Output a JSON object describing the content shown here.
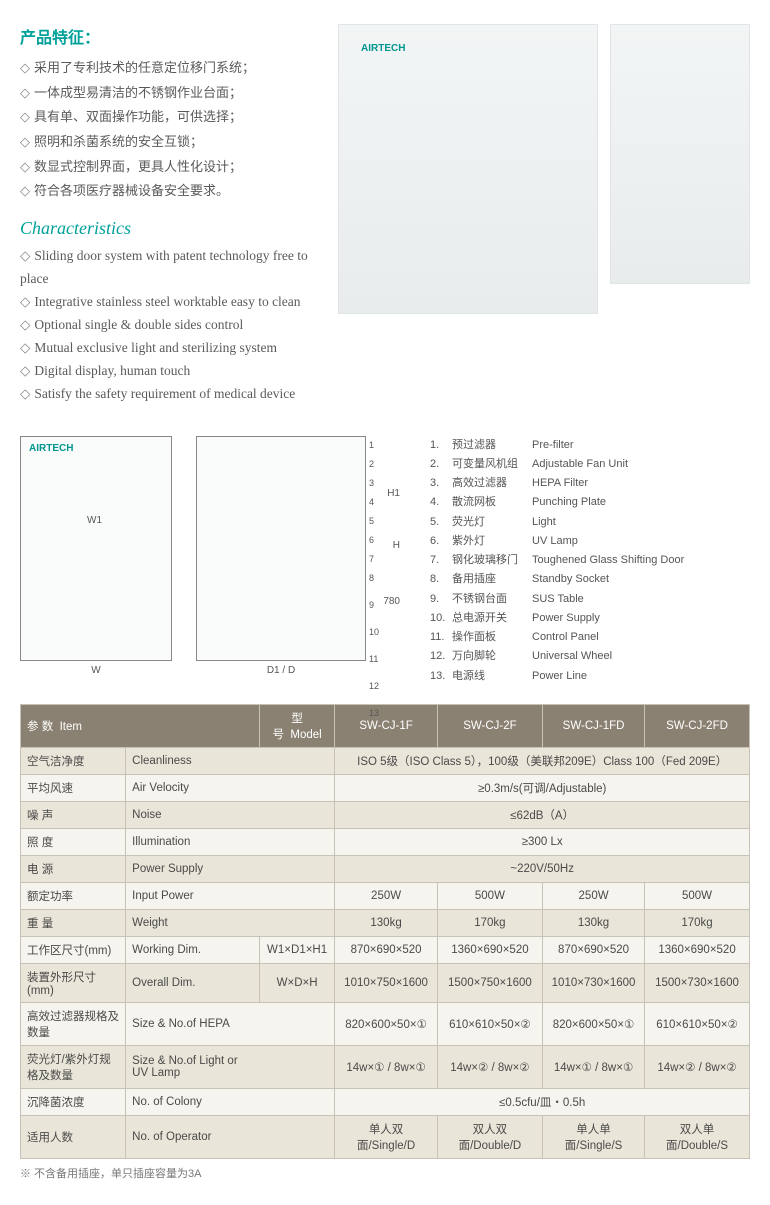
{
  "titles": {
    "features_cn": "产品特征：",
    "features_en": "Characteristics"
  },
  "features_cn": [
    "采用了专利技术的任意定位移门系统；",
    "一体成型易清洁的不锈钢作业台面；",
    "具有单、双面操作功能，可供选择；",
    "照明和杀菌系统的安全互锁；",
    "数显式控制界面，更具人性化设计；",
    "符合各项医疗器械设备安全要求。"
  ],
  "features_en": [
    "Sliding door system with patent technology free to place",
    "Integrative stainless steel worktable easy to clean",
    "Optional single & double sides control",
    "Mutual exclusive light and sterilizing system",
    "Digital display, human touch",
    "Satisfy the safety requirement of medical device"
  ],
  "brand": "AIRTECH",
  "diagram": {
    "labels": {
      "W": "W",
      "W1": "W1",
      "D": "D",
      "D1": "D1",
      "H": "H",
      "H1": "H1",
      "h780": "780"
    },
    "numbers": [
      "1",
      "2",
      "3",
      "4",
      "5",
      "6",
      "7",
      "8",
      "9",
      "10",
      "11",
      "12",
      "13"
    ]
  },
  "parts": [
    {
      "n": "1.",
      "cn": "预过滤器",
      "en": "Pre-filter"
    },
    {
      "n": "2.",
      "cn": "可变量风机组",
      "en": "Adjustable Fan Unit"
    },
    {
      "n": "3.",
      "cn": "高效过滤器",
      "en": "HEPA Filter"
    },
    {
      "n": "4.",
      "cn": "散流网板",
      "en": "Punching Plate"
    },
    {
      "n": "5.",
      "cn": "荧光灯",
      "en": "Light"
    },
    {
      "n": "6.",
      "cn": "紫外灯",
      "en": "UV Lamp"
    },
    {
      "n": "7.",
      "cn": "钢化玻璃移门",
      "en": "Toughened Glass Shifting Door"
    },
    {
      "n": "8.",
      "cn": "备用插座",
      "en": "Standby Socket"
    },
    {
      "n": "9.",
      "cn": "不锈钢台面",
      "en": "SUS Table"
    },
    {
      "n": "10.",
      "cn": "总电源开关",
      "en": "Power Supply"
    },
    {
      "n": "11.",
      "cn": "操作面板",
      "en": "Control Panel"
    },
    {
      "n": "12.",
      "cn": "万向脚轮",
      "en": "Universal Wheel"
    },
    {
      "n": "13.",
      "cn": "电源线",
      "en": "Power Line"
    }
  ],
  "spec": {
    "header": {
      "item_cn": "参 数",
      "item_en": "Item",
      "model_cn": "型 号",
      "model_en": "Model",
      "models": [
        "SW-CJ-1F",
        "SW-CJ-2F",
        "SW-CJ-1FD",
        "SW-CJ-2FD"
      ]
    },
    "rows": [
      {
        "cn": "空气洁净度",
        "en": "Cleanliness",
        "span": "ISO 5级（ISO Class 5），100级（美联邦209E）Class 100（Fed 209E）"
      },
      {
        "cn": "平均风速",
        "en": "Air Velocity",
        "span": "≥0.3m/s(可调/Adjustable)"
      },
      {
        "cn": "噪 声",
        "en": "Noise",
        "span": "≤62dB（A）"
      },
      {
        "cn": "照 度",
        "en": "Illumination",
        "span": "≥300 Lx"
      },
      {
        "cn": "电 源",
        "en": "Power Supply",
        "span": "~220V/50Hz"
      },
      {
        "cn": "额定功率",
        "en": "Input Power",
        "vals": [
          "250W",
          "500W",
          "250W",
          "500W"
        ]
      },
      {
        "cn": "重 量",
        "en": "Weight",
        "vals": [
          "130kg",
          "170kg",
          "130kg",
          "170kg"
        ]
      },
      {
        "cn": "工作区尺寸(mm)",
        "en": "Working Dim.",
        "sub": "W1×D1×H1",
        "vals": [
          "870×690×520",
          "1360×690×520",
          "870×690×520",
          "1360×690×520"
        ]
      },
      {
        "cn": "装置外形尺寸(mm)",
        "en": "Overall Dim.",
        "sub": "W×D×H",
        "vals": [
          "1010×750×1600",
          "1500×750×1600",
          "1010×730×1600",
          "1500×730×1600"
        ]
      },
      {
        "cn": "高效过滤器规格及数量",
        "en": "Size & No.of HEPA",
        "vals": [
          "820×600×50×①",
          "610×610×50×②",
          "820×600×50×①",
          "610×610×50×②"
        ]
      },
      {
        "cn": "荧光灯/紫外灯规格及数量",
        "en": "Size & No.of Light or UV Lamp",
        "vals": [
          "14w×① / 8w×①",
          "14w×② / 8w×②",
          "14w×① / 8w×①",
          "14w×② / 8w×②"
        ]
      },
      {
        "cn": "沉降菌浓度",
        "en": "No. of Colony",
        "span": "≤0.5cfu/皿・0.5h"
      },
      {
        "cn": "适用人数",
        "en": "No. of Operator",
        "vals": [
          "单人双面/Single/D",
          "双人双面/Double/D",
          "单人单面/Single/S",
          "双人单面/Double/S"
        ]
      }
    ],
    "footnote": "※ 不含备用插座，单只插座容量为3A"
  },
  "colors": {
    "teal": "#00a19a",
    "header_bg": "#8a8172",
    "row_odd": "#e9e5d8",
    "row_even": "#f6f4ee",
    "border": "#c7c2b5",
    "text": "#4a4a4a"
  }
}
